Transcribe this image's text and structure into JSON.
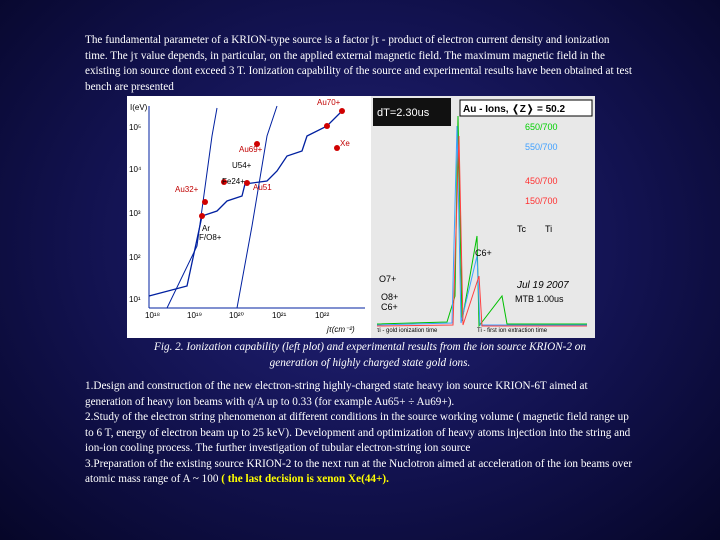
{
  "paragraph": "The fundamental parameter of a KRION-type source is a factor jτ - product of electron current density and ionization time. The jτ value depends, in particular, on the applied external magnetic field. The maximum magnetic field in the existing ion source dont exceed 3 T. Ionization capability of the source and experimental results have been obtained at test bench are presented",
  "figure": {
    "left_plot": {
      "y_label": "I(eV)",
      "x_label": "jτ(cm⁻²)",
      "y_ticks": [
        "10⁵",
        "10⁴",
        "10³",
        "10²",
        "10¹"
      ],
      "x_ticks": [
        "10¹⁸",
        "10¹⁹",
        "10²⁰",
        "10²¹",
        "10²²"
      ],
      "points": [
        "Au70+",
        "Au69+",
        "U54+",
        "Fe24+",
        "Au51",
        "Au32+",
        "Ar",
        "F/O8+",
        "Xe"
      ]
    },
    "right_plot": {
      "time": "dT=2.30us",
      "header": "Au - Ions, ❬Z❭ = 50.2",
      "curves": [
        "650/700",
        "550/700",
        "450/700",
        "150/700"
      ],
      "markers": [
        "Tc",
        "Ti"
      ],
      "peaks": [
        "C6+",
        "O7+",
        "O8+",
        "C6+"
      ],
      "date": "Jul 19 2007",
      "scale": "MTB 1.00us",
      "legend_left": "τi - gold ionization time",
      "legend_right": "Ti - first ion extraction time"
    },
    "caption": "Fig. 2. Ionization capability (left plot) and experimental results from the ion source KRION-2 on generation of highly charged state gold ions."
  },
  "list": [
    "1.Design and construction of the new electron-string highly-charged state heavy ion source KRION-6T aimed at generation of  heavy ion beams with q/A  up to 0.33 (for example Au65+ ÷ Au69+).",
    "2.Study of the electron string phenomenon at different conditions in the source working volume ( magnetic field range up to 6 T, energy of electron beam up to 25 keV). Development and optimization of heavy atoms injection into the string and ion-ion cooling process.  The further investigation of tubular electron-string ion source",
    "3.Preparation of the existing source KRION-2 to the next run at the Nuclotron aimed at acceleration of the ion beams over atomic mass range of A ~ 100 "
  ],
  "highlight": "( the last decision is xenon Xe(44+)."
}
